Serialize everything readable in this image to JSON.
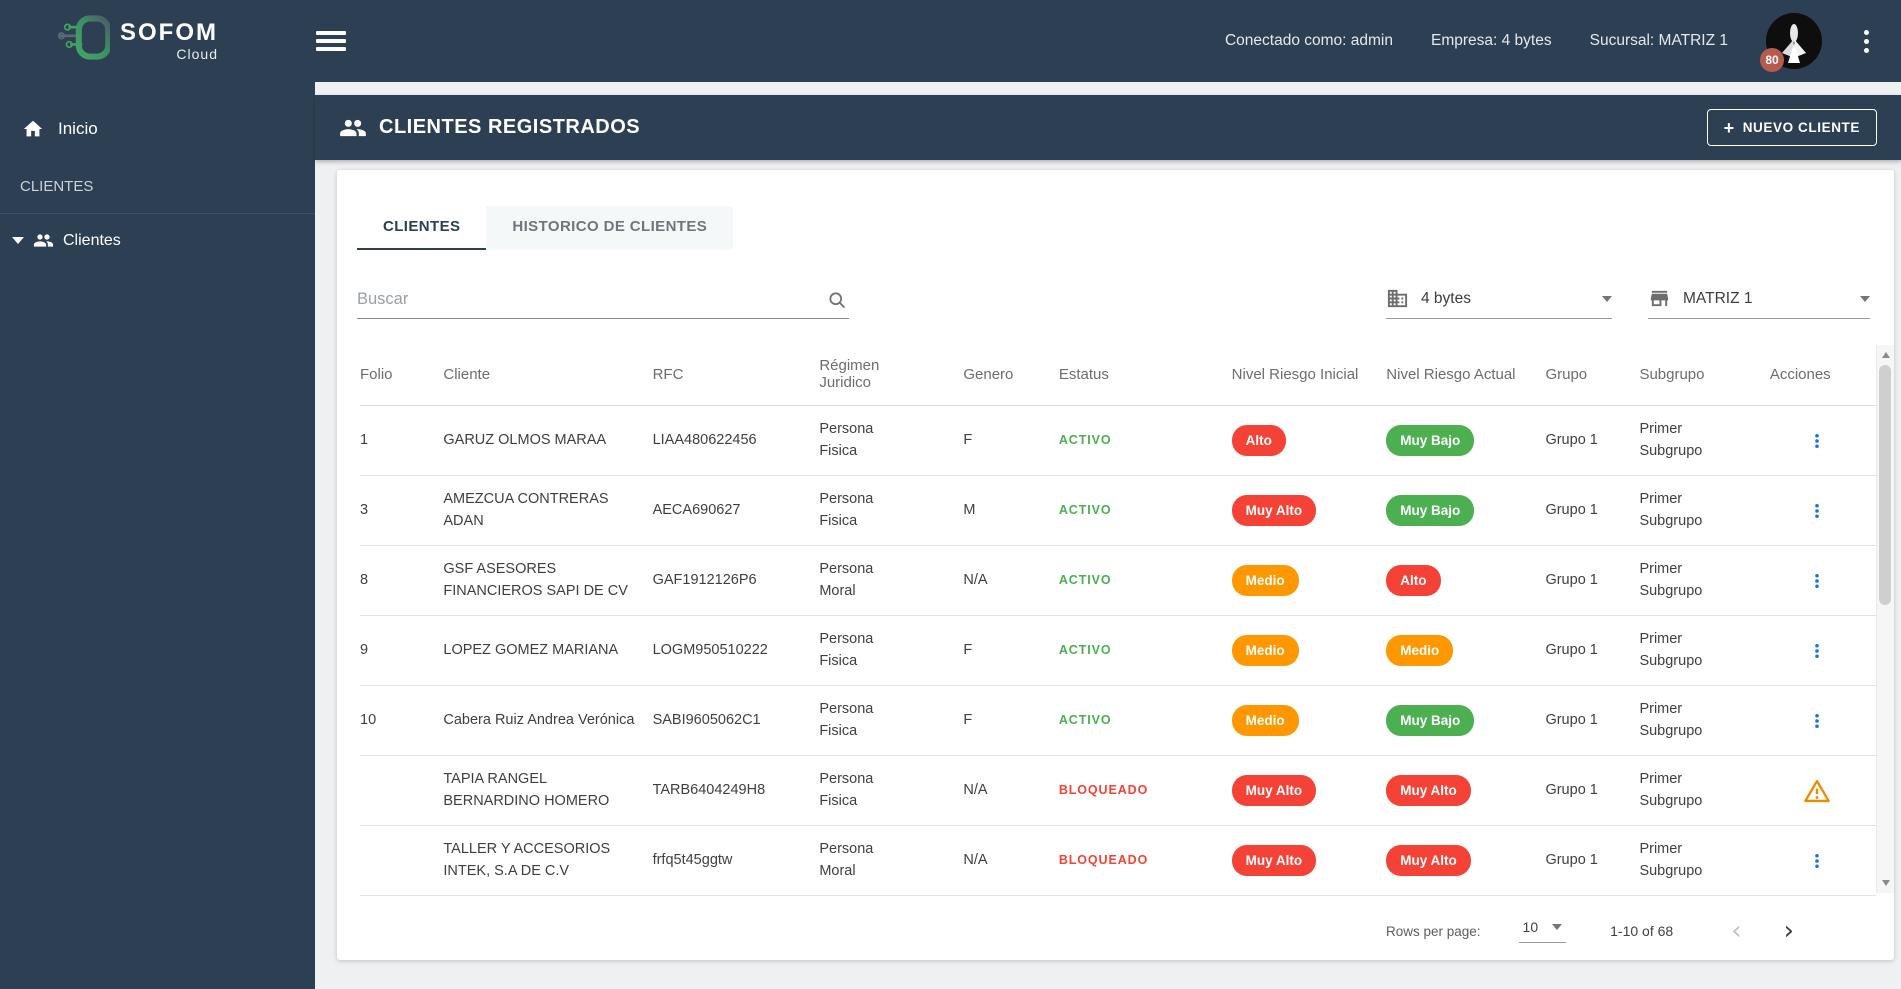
{
  "topbar": {
    "brand_name": "SOFOM",
    "brand_sub": "Cloud",
    "connected": "Conectado como: admin",
    "company": "Empresa: 4 bytes",
    "branch": "Sucursal: MATRIZ 1",
    "avatar_badge": "80"
  },
  "sidebar": {
    "inicio": "Inicio",
    "section": "CLIENTES",
    "clientes": "Clientes"
  },
  "header": {
    "title": "CLIENTES REGISTRADOS",
    "new_button": "NUEVO CLIENTE"
  },
  "tabs": {
    "active": "CLIENTES",
    "inactive": "HISTORICO DE CLIENTES"
  },
  "filters": {
    "search_placeholder": "Buscar",
    "company": "4 bytes",
    "branch": "MATRIZ 1"
  },
  "table": {
    "headers": [
      "Folio",
      "Cliente",
      "RFC",
      "Régimen Juridico",
      "Genero",
      "Estatus",
      "Nivel Riesgo Inicial",
      "Nivel Riesgo Actual",
      "Grupo",
      "Subgrupo",
      "Acciones"
    ],
    "rows": [
      {
        "folio": "1",
        "cliente": "GARUZ OLMOS MARAA",
        "rfc": "LIAA480622456",
        "regimen": "Persona Fisica",
        "genero": "F",
        "estatus": "ACTIVO",
        "estatus_color": "green",
        "riesgo_inicial": {
          "label": "Alto",
          "color": "red"
        },
        "riesgo_actual": {
          "label": "Muy Bajo",
          "color": "green"
        },
        "grupo": "Grupo 1",
        "subgrupo": "Primer Subgrupo",
        "action": "menu"
      },
      {
        "folio": "3",
        "cliente": "AMEZCUA CONTRERAS ADAN",
        "rfc": "AECA690627",
        "regimen": "Persona Fisica",
        "genero": "M",
        "estatus": "ACTIVO",
        "estatus_color": "green",
        "riesgo_inicial": {
          "label": "Muy Alto",
          "color": "red"
        },
        "riesgo_actual": {
          "label": "Muy Bajo",
          "color": "green"
        },
        "grupo": "Grupo 1",
        "subgrupo": "Primer Subgrupo",
        "action": "menu"
      },
      {
        "folio": "8",
        "cliente": "GSF ASESORES FINANCIEROS SAPI DE CV",
        "rfc": "GAF1912126P6",
        "regimen": "Persona Moral",
        "genero": "N/A",
        "estatus": "ACTIVO",
        "estatus_color": "green",
        "riesgo_inicial": {
          "label": "Medio",
          "color": "orange"
        },
        "riesgo_actual": {
          "label": "Alto",
          "color": "red"
        },
        "grupo": "Grupo 1",
        "subgrupo": "Primer Subgrupo",
        "action": "menu"
      },
      {
        "folio": "9",
        "cliente": "LOPEZ GOMEZ MARIANA",
        "rfc": "LOGM950510222",
        "regimen": "Persona Fisica",
        "genero": "F",
        "estatus": "ACTIVO",
        "estatus_color": "green",
        "riesgo_inicial": {
          "label": "Medio",
          "color": "orange"
        },
        "riesgo_actual": {
          "label": "Medio",
          "color": "orange"
        },
        "grupo": "Grupo 1",
        "subgrupo": "Primer Subgrupo",
        "action": "menu"
      },
      {
        "folio": "10",
        "cliente": "Cabera Ruiz Andrea Verónica",
        "rfc": "SABI9605062C1",
        "regimen": "Persona Fisica",
        "genero": "F",
        "estatus": "ACTIVO",
        "estatus_color": "green",
        "riesgo_inicial": {
          "label": "Medio",
          "color": "orange"
        },
        "riesgo_actual": {
          "label": "Muy Bajo",
          "color": "green"
        },
        "grupo": "Grupo 1",
        "subgrupo": "Primer Subgrupo",
        "action": "menu"
      },
      {
        "folio": "",
        "cliente": "TAPIA RANGEL BERNARDINO HOMERO",
        "rfc": "TARB6404249H8",
        "regimen": "Persona Fisica",
        "genero": "N/A",
        "estatus": "BLOQUEADO",
        "estatus_color": "red",
        "riesgo_inicial": {
          "label": "Muy Alto",
          "color": "red"
        },
        "riesgo_actual": {
          "label": "Muy Alto",
          "color": "red"
        },
        "grupo": "Grupo 1",
        "subgrupo": "Primer Subgrupo",
        "action": "warning"
      },
      {
        "folio": "",
        "cliente": "TALLER Y ACCESORIOS INTEK, S.A DE C.V",
        "rfc": "frfq5t45ggtw",
        "regimen": "Persona Moral",
        "genero": "N/A",
        "estatus": "BLOQUEADO",
        "estatus_color": "red",
        "riesgo_inicial": {
          "label": "Muy Alto",
          "color": "red"
        },
        "riesgo_actual": {
          "label": "Muy Alto",
          "color": "red"
        },
        "grupo": "Grupo 1",
        "subgrupo": "Primer Subgrupo",
        "action": "menu"
      }
    ]
  },
  "pagination": {
    "label": "Rows per page:",
    "value": "10",
    "range": "1-10 of 68",
    "prev": "‹",
    "next": "›"
  },
  "colors": {
    "navy": "#2d4053",
    "green": "#4caf50",
    "red": "#f44336",
    "orange": "#ff9800",
    "warning": "#ef8a00",
    "action_blue": "#1976d2",
    "badge_80": "#b65c4f"
  }
}
